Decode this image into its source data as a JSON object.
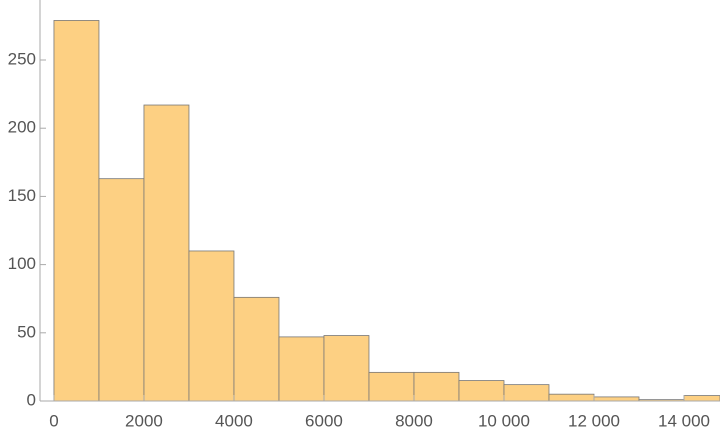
{
  "chart_data": {
    "type": "histogram",
    "bins": [
      0,
      1000,
      2000,
      3000,
      4000,
      5000,
      6000,
      7000,
      8000,
      9000,
      10000,
      11000,
      12000,
      13000,
      14000,
      15000
    ],
    "values": [
      279,
      163,
      217,
      110,
      76,
      47,
      48,
      21,
      21,
      15,
      12,
      5,
      3,
      1,
      4
    ],
    "color": "#fdd083",
    "edge_color": "#777777",
    "xlim": [
      -310,
      14800
    ],
    "ylim": [
      0,
      294
    ],
    "xticks": [
      0,
      2000,
      4000,
      6000,
      8000,
      {
        "value": 10000,
        "label": "10 000"
      },
      {
        "value": 12000,
        "label": "12 000"
      },
      {
        "value": 14000,
        "label": "14 000"
      }
    ],
    "yticks": [
      0,
      50,
      100,
      150,
      200,
      250
    ]
  }
}
